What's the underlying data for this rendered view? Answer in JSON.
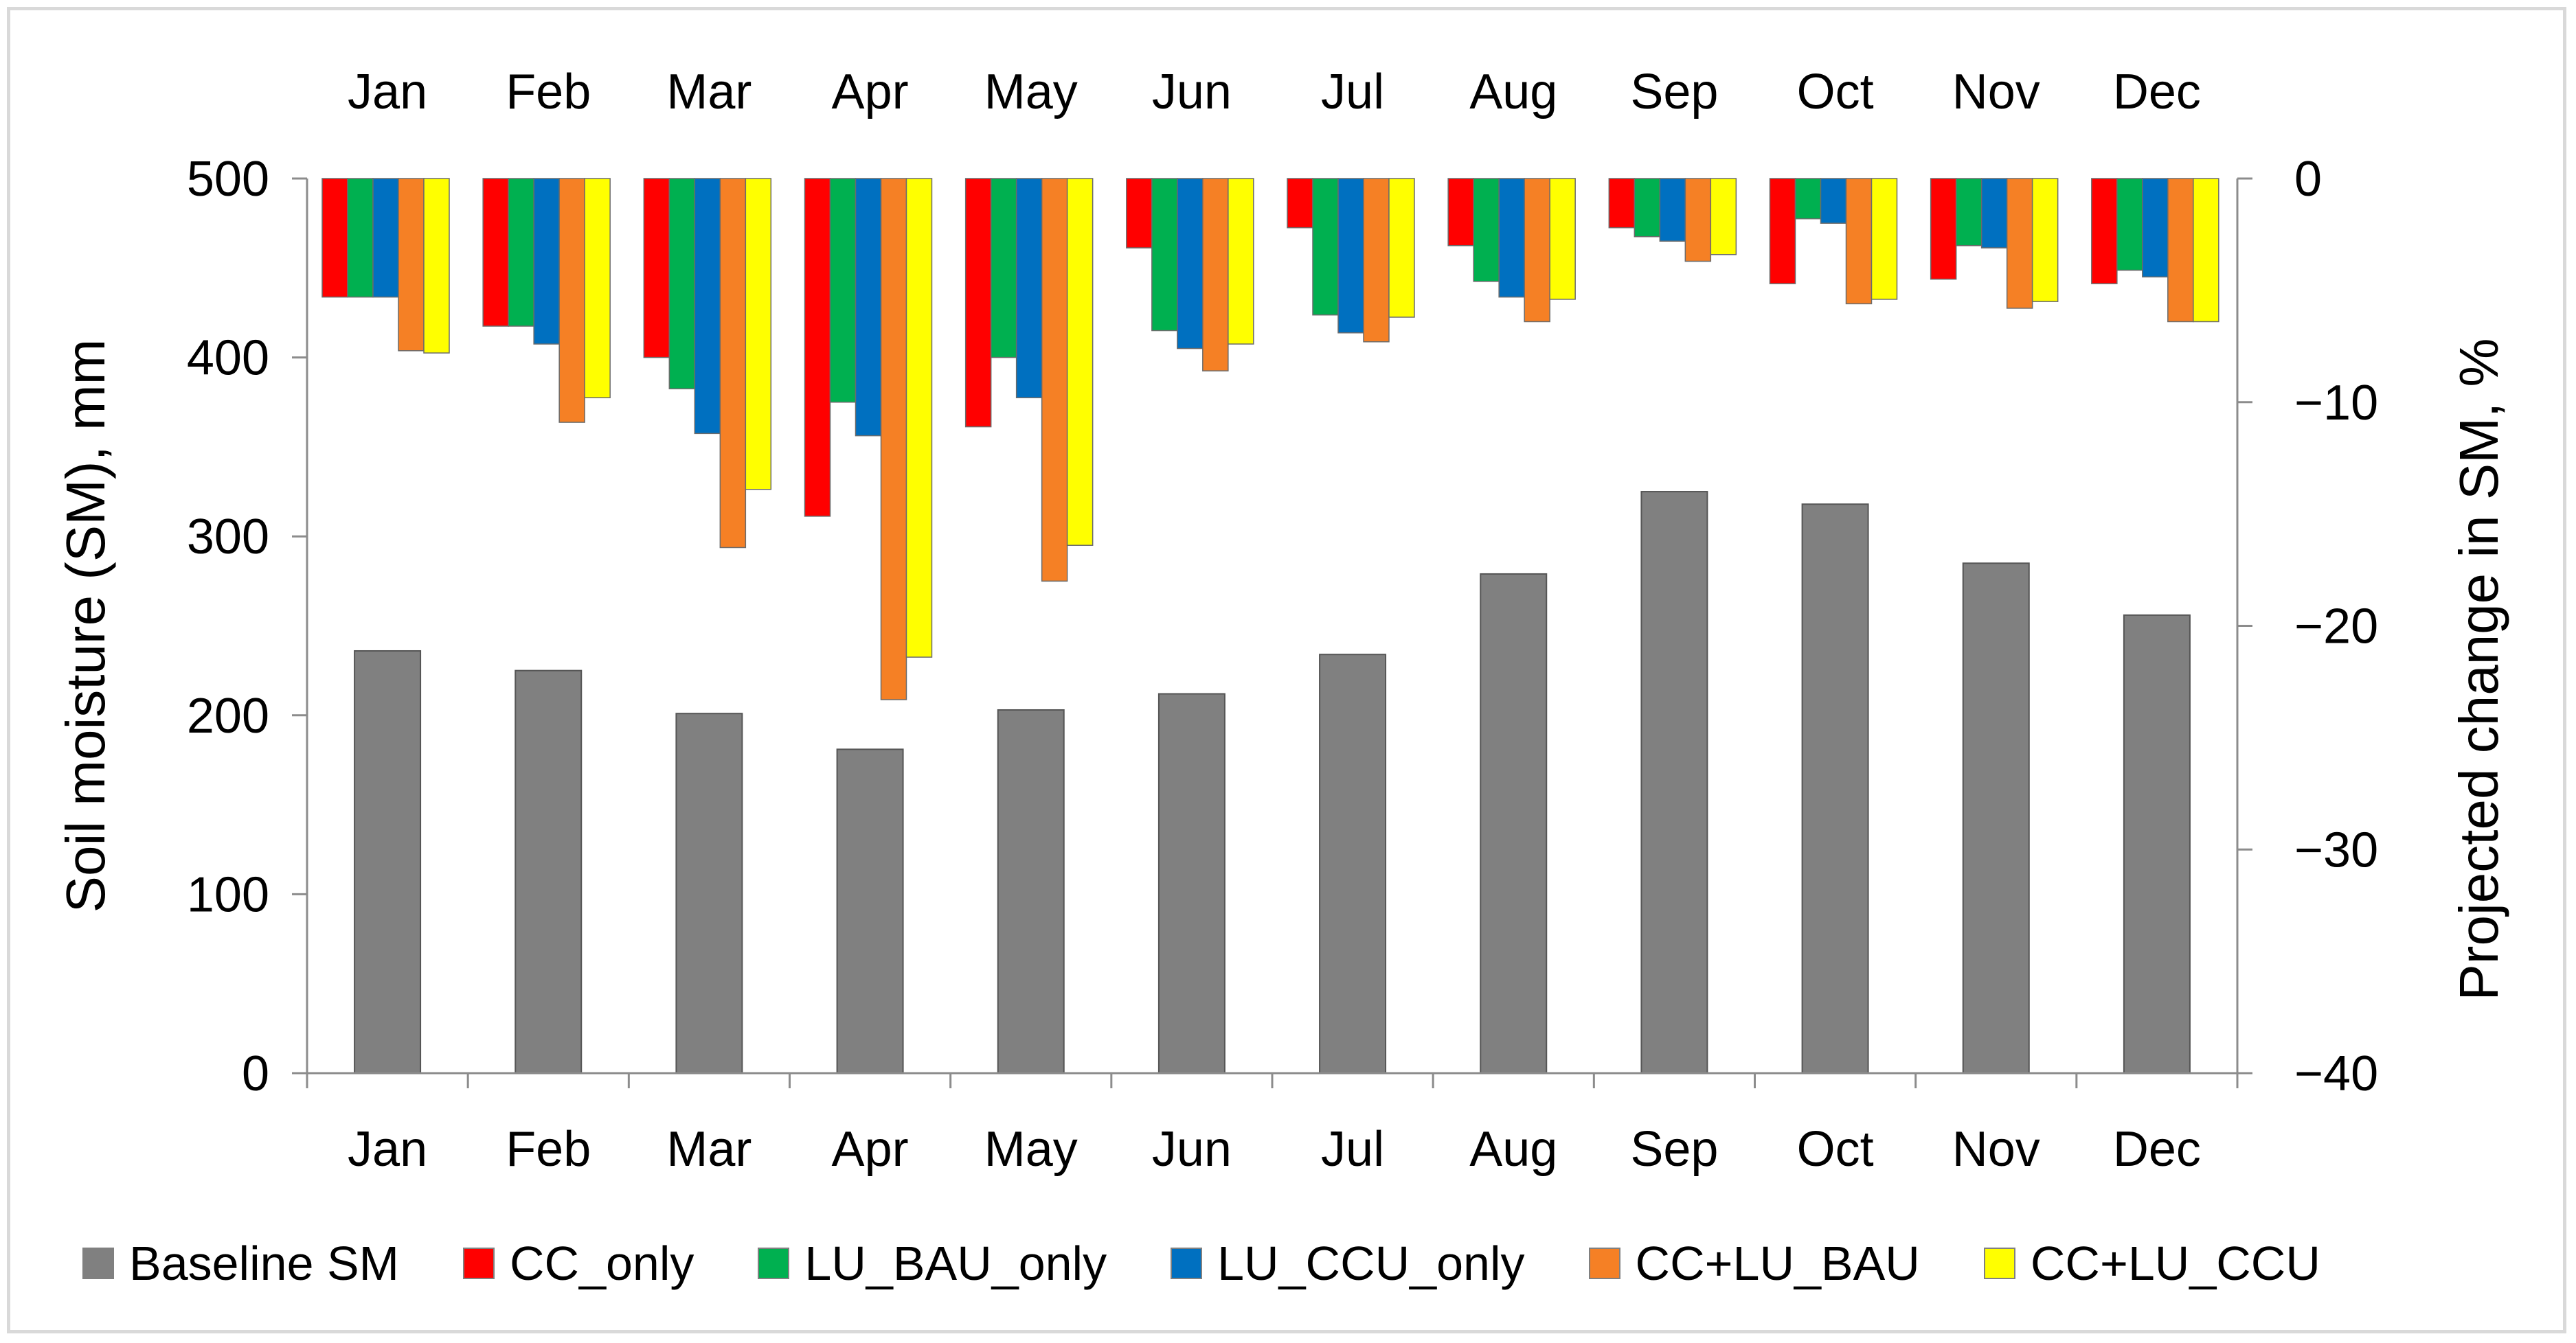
{
  "chart_data": {
    "type": "bar",
    "categories": [
      "Jan",
      "Feb",
      "Mar",
      "Apr",
      "May",
      "Jun",
      "Jul",
      "Aug",
      "Sep",
      "Oct",
      "Nov",
      "Dec"
    ],
    "top_categories": [
      "Jan",
      "Feb",
      "Mar",
      "Apr",
      "May",
      "Jun",
      "Jul",
      "Aug",
      "Sep",
      "Oct",
      "Nov",
      "Dec"
    ],
    "left_axis": {
      "label": "Soil moisture (SM), mm",
      "ylim": [
        0,
        500
      ],
      "ticks": [
        "0",
        "100",
        "200",
        "300",
        "400",
        "500"
      ]
    },
    "right_axis": {
      "label": "Projected change in SM, %",
      "ylim": [
        -40,
        0
      ],
      "ticks": [
        "−40",
        "−30",
        "−20",
        "−10",
        "0"
      ]
    },
    "baseline_series": {
      "name": "Baseline SM",
      "color": "#808080",
      "axis": "left",
      "values": [
        236,
        225,
        201,
        181,
        203,
        212,
        234,
        279,
        325,
        318,
        285,
        256
      ]
    },
    "change_series": [
      {
        "name": "CC_only",
        "color": "#ff0000",
        "axis": "right",
        "values": [
          -5.3,
          -6.6,
          -8.0,
          -15.1,
          -11.1,
          -3.1,
          -2.2,
          -3.0,
          -2.2,
          -4.7,
          -4.5,
          -4.7
        ]
      },
      {
        "name": "LU_BAU_only",
        "color": "#00b050",
        "axis": "right",
        "values": [
          -5.3,
          -6.6,
          -9.4,
          -10.0,
          -8.0,
          -6.8,
          -6.1,
          -4.6,
          -2.6,
          -1.8,
          -3.0,
          -4.1
        ]
      },
      {
        "name": "LU_CCU_only",
        "color": "#0070c0",
        "axis": "right",
        "values": [
          -5.3,
          -7.4,
          -11.4,
          -11.5,
          -9.8,
          -7.6,
          -6.9,
          -5.3,
          -2.8,
          -2.0,
          -3.1,
          -4.4
        ]
      },
      {
        "name": "CC+LU_BAU",
        "color": "#f58025",
        "axis": "right",
        "values": [
          -7.7,
          -10.9,
          -16.5,
          -23.3,
          -18.0,
          -8.6,
          -7.3,
          -6.4,
          -3.7,
          -5.6,
          -5.8,
          -6.4
        ]
      },
      {
        "name": "CC+LU_CCU",
        "color": "#ffff00",
        "axis": "right",
        "values": [
          -7.8,
          -9.8,
          -13.9,
          -21.4,
          -16.4,
          -7.4,
          -6.2,
          -5.4,
          -3.4,
          -5.4,
          -5.5,
          -6.4
        ]
      }
    ],
    "legend_position": "bottom",
    "grid": false
  }
}
